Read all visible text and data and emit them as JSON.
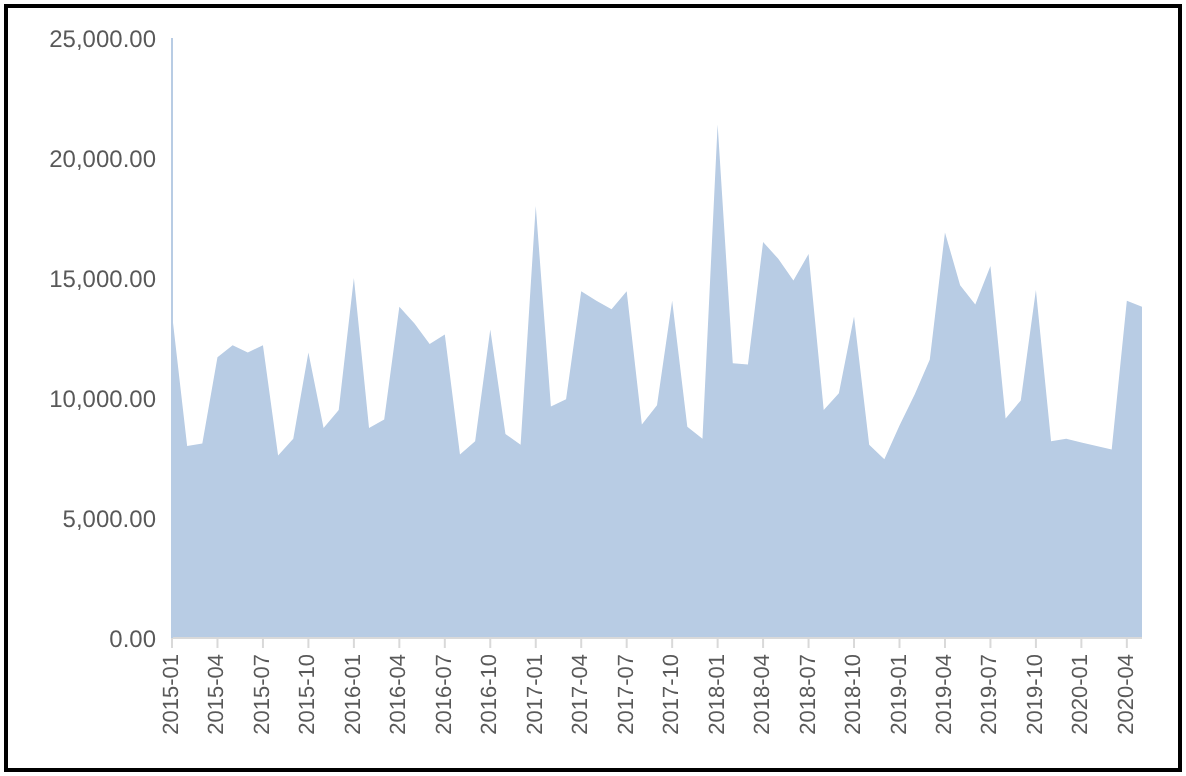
{
  "chart_data": {
    "type": "area",
    "categories": [
      "2015-01",
      null,
      null,
      "2015-04",
      null,
      null,
      "2015-07",
      null,
      null,
      "2015-10",
      null,
      null,
      "2016-01",
      null,
      null,
      "2016-04",
      null,
      null,
      "2016-07",
      null,
      null,
      "2016-10",
      null,
      null,
      "2017-01",
      null,
      null,
      "2017-04",
      null,
      null,
      "2017-07",
      null,
      null,
      "2017-10",
      null,
      null,
      "2018-01",
      null,
      null,
      "2018-04",
      null,
      null,
      "2018-07",
      null,
      null,
      "2018-10",
      null,
      null,
      "2019-01",
      null,
      null,
      "2019-04",
      null,
      null,
      "2019-07",
      null,
      null,
      "2019-10",
      null,
      null,
      "2020-01",
      null,
      null,
      "2020-04",
      null
    ],
    "series": [
      {
        "color": "#b8cce4",
        "values": [
          13500,
          8000,
          8100,
          11700,
          12200,
          11900,
          12200,
          7600,
          8300,
          11900,
          8750,
          9500,
          15000,
          8750,
          9100,
          13800,
          13100,
          12250,
          12650,
          7650,
          8200,
          12850,
          8500,
          8050,
          18000,
          9650,
          9950,
          14450,
          14050,
          13700,
          14450,
          8900,
          9700,
          14050,
          8800,
          8300,
          21400,
          11450,
          11400,
          16500,
          15800,
          14900,
          16000,
          9500,
          10200,
          13400,
          8050,
          7450,
          8850,
          10150,
          11600,
          16900,
          14700,
          13900,
          15500,
          9150,
          9900,
          14500,
          8200,
          8300,
          8150,
          8000,
          7850,
          14050,
          13800
        ]
      }
    ],
    "ylim": [
      0,
      25000
    ],
    "yticks": [
      {
        "value": 0,
        "label": "0.00"
      },
      {
        "value": 5000,
        "label": "5,000.00"
      },
      {
        "value": 10000,
        "label": "10,000.00"
      },
      {
        "value": 15000,
        "label": "15,000.00"
      },
      {
        "value": 20000,
        "label": "20,000.00"
      },
      {
        "value": 25000,
        "label": "25,000.00"
      }
    ],
    "grid": false,
    "legend": false
  }
}
